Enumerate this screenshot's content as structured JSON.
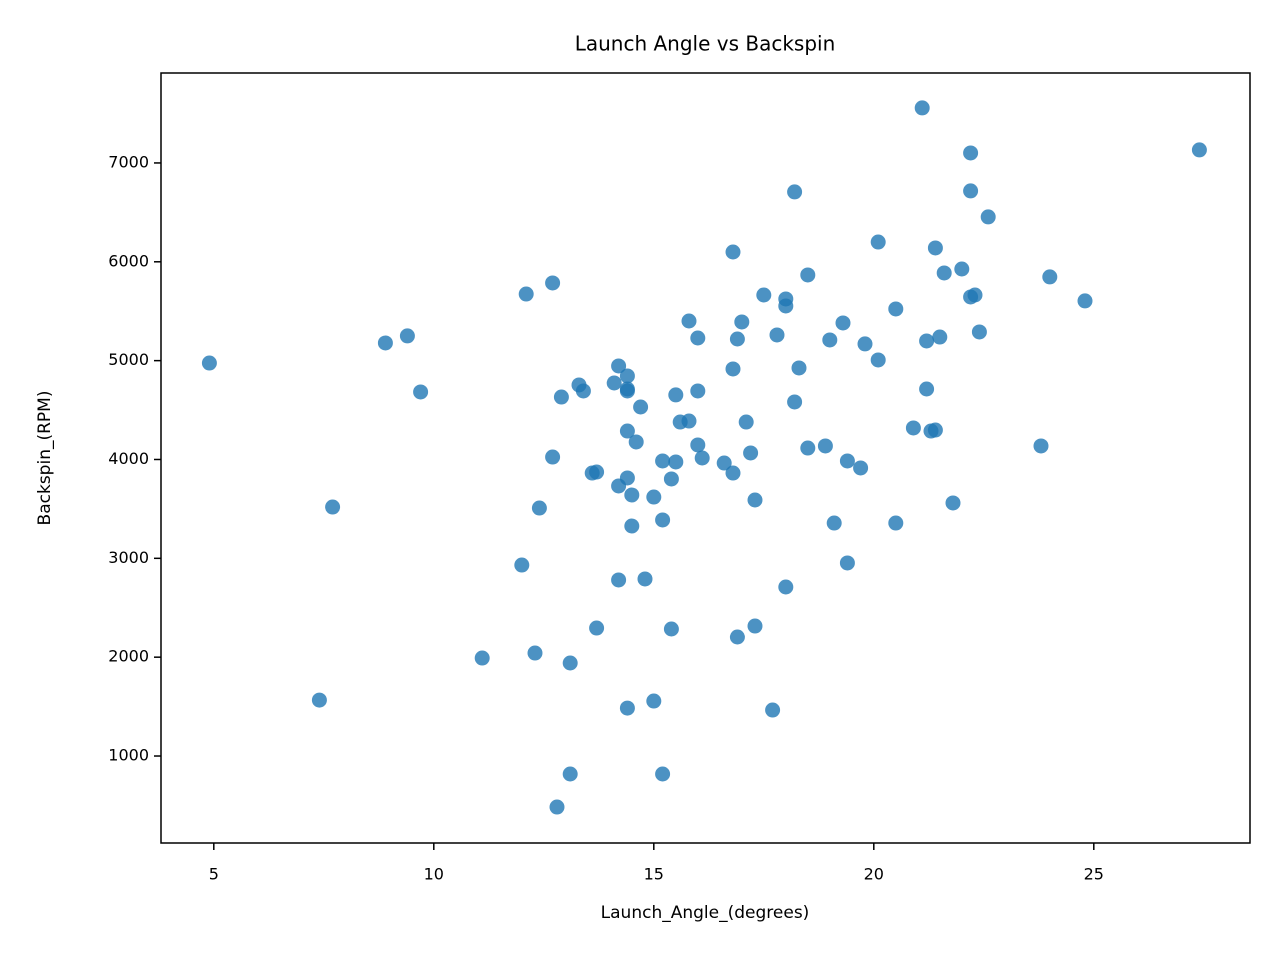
{
  "chart_data": {
    "type": "scatter",
    "title": "Launch Angle vs Backspin",
    "x_label": "Launch_Angle_(degrees)",
    "y_label": "Backspin_(RPM)",
    "color": "#1f77b4",
    "grid": false,
    "xlim": [
      3.8,
      28.55
    ],
    "ylim": [
      120,
      7910
    ],
    "xticks": [
      5,
      10,
      15,
      20,
      25
    ],
    "yticks": [
      1000,
      2000,
      3000,
      4000,
      5000,
      6000,
      7000
    ],
    "x": [
      4.9,
      7.4,
      7.7,
      8.9,
      9.4,
      9.7,
      11.1,
      12.0,
      12.1,
      12.3,
      12.4,
      12.7,
      12.7,
      12.8,
      12.9,
      13.1,
      13.1,
      13.3,
      13.4,
      13.6,
      13.7,
      13.7,
      14.1,
      14.2,
      14.2,
      14.2,
      14.4,
      14.4,
      14.4,
      14.4,
      14.4,
      14.4,
      14.5,
      14.5,
      14.6,
      14.7,
      14.8,
      15.0,
      15.0,
      15.2,
      15.2,
      15.2,
      15.4,
      15.4,
      15.5,
      15.5,
      15.6,
      15.8,
      15.8,
      16.0,
      16.0,
      16.0,
      16.1,
      16.6,
      16.8,
      16.8,
      16.8,
      16.9,
      16.9,
      17.0,
      17.1,
      17.2,
      17.3,
      17.3,
      17.5,
      17.7,
      17.8,
      18.0,
      18.0,
      18.0,
      18.2,
      18.2,
      18.3,
      18.5,
      18.5,
      18.9,
      19.0,
      19.1,
      19.3,
      19.4,
      19.4,
      19.7,
      19.8,
      20.1,
      20.1,
      20.5,
      20.5,
      20.9,
      21.1,
      21.2,
      21.2,
      21.3,
      21.4,
      21.4,
      21.5,
      21.6,
      21.8,
      22.0,
      22.2,
      22.2,
      22.2,
      22.3,
      22.4,
      22.6,
      23.8,
      24.0,
      24.8,
      27.4
    ],
    "values": [
      4976,
      1566,
      3519,
      5179,
      5250,
      4683,
      1991,
      2932,
      5674,
      2042,
      3509,
      4025,
      5786,
      484,
      4632,
      818,
      1941,
      4754,
      4693,
      3863,
      3873,
      2295,
      4774,
      4946,
      3732,
      2781,
      4845,
      4713,
      4693,
      4288,
      3813,
      1485,
      3641,
      3327,
      4177,
      4531,
      2791,
      3620,
      1556,
      3985,
      3388,
      818,
      3803,
      2285,
      4653,
      3975,
      4379,
      5401,
      4389,
      5229,
      4693,
      4147,
      4015,
      3964,
      6099,
      4916,
      3863,
      5219,
      2204,
      5391,
      4379,
      4066,
      3590,
      2315,
      5664,
      1465,
      5260,
      5624,
      5553,
      2710,
      6707,
      4582,
      4926,
      5867,
      4116,
      4137,
      5209,
      3357,
      5381,
      3985,
      2953,
      3914,
      5169,
      6200,
      5007,
      5523,
      3357,
      4319,
      7557,
      4713,
      5199,
      4288,
      4298,
      6140,
      5239,
      5887,
      3560,
      5927,
      7101,
      6717,
      5644,
      5664,
      5290,
      6454,
      4137,
      5847,
      5604,
      7132
    ]
  }
}
